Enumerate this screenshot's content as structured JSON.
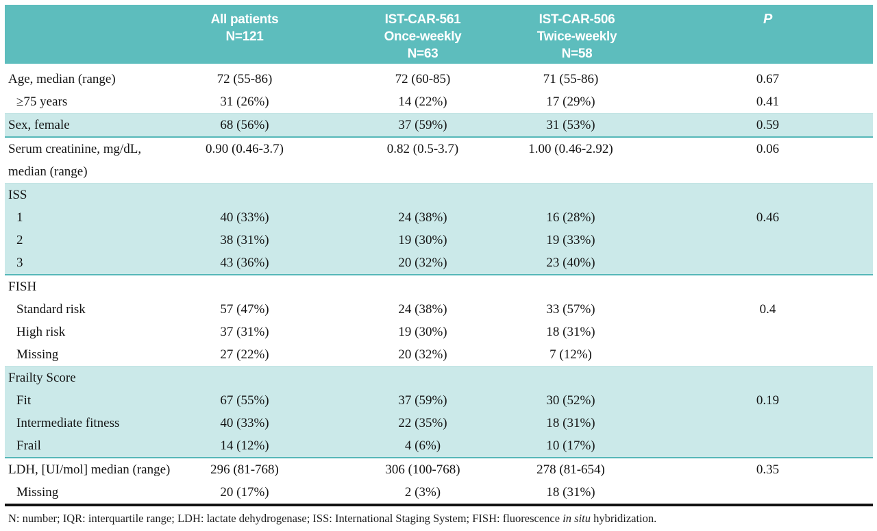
{
  "colors": {
    "header_bg": "#5dbdbd",
    "header_text": "#ffffff",
    "row_highlight": "#cbe9e9",
    "section_border_teal": "#55b7b8",
    "light_border": "#c2e4e4",
    "bottom_bar": "#111111",
    "body_text": "#141414"
  },
  "table": {
    "header": [
      {
        "key": "rowlabel",
        "lines": []
      },
      {
        "key": "all-patients",
        "lines": [
          "All patients",
          "N=121"
        ]
      },
      {
        "key": "ist-car-561",
        "lines": [
          "IST-CAR-561",
          "Once-weekly",
          "N=63"
        ]
      },
      {
        "key": "ist-car-506",
        "lines": [
          "IST-CAR-506",
          "Twice-weekly",
          "N=58"
        ]
      },
      {
        "key": "p",
        "lines": [
          "P"
        ]
      }
    ],
    "rows": [
      {
        "label": "Age, median (range)",
        "indent": false,
        "highlight": false,
        "values": [
          "72 (55-86)",
          "72 (60-85)",
          "71 (55-86)",
          "0.67"
        ]
      },
      {
        "label": "≥75 years",
        "indent": true,
        "highlight": false,
        "border": "light",
        "values": [
          "31 (26%)",
          "14 (22%)",
          "17 (29%)",
          "0.41"
        ]
      },
      {
        "label": "Sex, female",
        "indent": false,
        "highlight": true,
        "border": "teal",
        "values": [
          "68 (56%)",
          "37 (59%)",
          "31 (53%)",
          "0.59"
        ]
      },
      {
        "label": "Serum creatinine, mg/dL,",
        "label2": "median (range)",
        "indent": false,
        "highlight": false,
        "values": [
          "0.90 (0.46-3.7)",
          "0.82 (0.5-3.7)",
          "1.00 (0.46-2.92)",
          "0.06"
        ]
      },
      {
        "label": "ISS",
        "indent": false,
        "highlight": true,
        "section_start": true,
        "values": [
          "",
          "",
          "",
          ""
        ]
      },
      {
        "label": "1",
        "indent": true,
        "highlight": true,
        "values": [
          "40 (33%)",
          "24 (38%)",
          "16 (28%)",
          "0.46"
        ]
      },
      {
        "label": "2",
        "indent": true,
        "highlight": true,
        "values": [
          "38 (31%)",
          "19 (30%)",
          "19 (33%)",
          ""
        ]
      },
      {
        "label": "3",
        "indent": true,
        "highlight": true,
        "border": "teal",
        "values": [
          "43 (36%)",
          "20 (32%)",
          "23 (40%)",
          ""
        ]
      },
      {
        "label": "FISH",
        "indent": false,
        "highlight": false,
        "values": [
          "",
          "",
          "",
          ""
        ]
      },
      {
        "label": "Standard risk",
        "indent": true,
        "highlight": false,
        "values": [
          "57 (47%)",
          "24 (38%)",
          "33 (57%)",
          "0.4"
        ]
      },
      {
        "label": "High risk",
        "indent": true,
        "highlight": false,
        "values": [
          "37 (31%)",
          "19 (30%)",
          "18 (31%)",
          ""
        ]
      },
      {
        "label": "Missing",
        "indent": true,
        "highlight": false,
        "values": [
          "27 (22%)",
          "20 (32%)",
          "7 (12%)",
          ""
        ]
      },
      {
        "label": "Frailty Score",
        "indent": false,
        "highlight": true,
        "section_start": true,
        "values": [
          "",
          "",
          "",
          ""
        ]
      },
      {
        "label": "Fit",
        "indent": true,
        "highlight": true,
        "values": [
          "67 (55%)",
          "37 (59%)",
          "30 (52%)",
          "0.19"
        ]
      },
      {
        "label": "Intermediate fitness",
        "indent": true,
        "highlight": true,
        "values": [
          "40 (33%)",
          "22 (35%)",
          "18 (31%)",
          ""
        ]
      },
      {
        "label": "Frail",
        "indent": true,
        "highlight": true,
        "border": "teal",
        "values": [
          "14 (12%)",
          "4 (6%)",
          "10 (17%)",
          ""
        ]
      },
      {
        "label": "LDH, [UI/mol] median (range)",
        "indent": false,
        "highlight": false,
        "values": [
          "296 (81-768)",
          "306 (100-768)",
          "278 (81-654)",
          "0.35"
        ]
      },
      {
        "label": "Missing",
        "indent": true,
        "highlight": false,
        "border": "black",
        "values": [
          "20 (17%)",
          "2 (3%)",
          "18 (31%)",
          ""
        ]
      }
    ]
  },
  "footnote": {
    "segments": [
      {
        "text": "N: number; IQR: interquartile range; LDH: lactate dehydrogenase; ISS: International Staging System; FISH: fluorescence "
      },
      {
        "text": "in situ",
        "italic": true
      },
      {
        "text": " hybridization."
      }
    ]
  }
}
